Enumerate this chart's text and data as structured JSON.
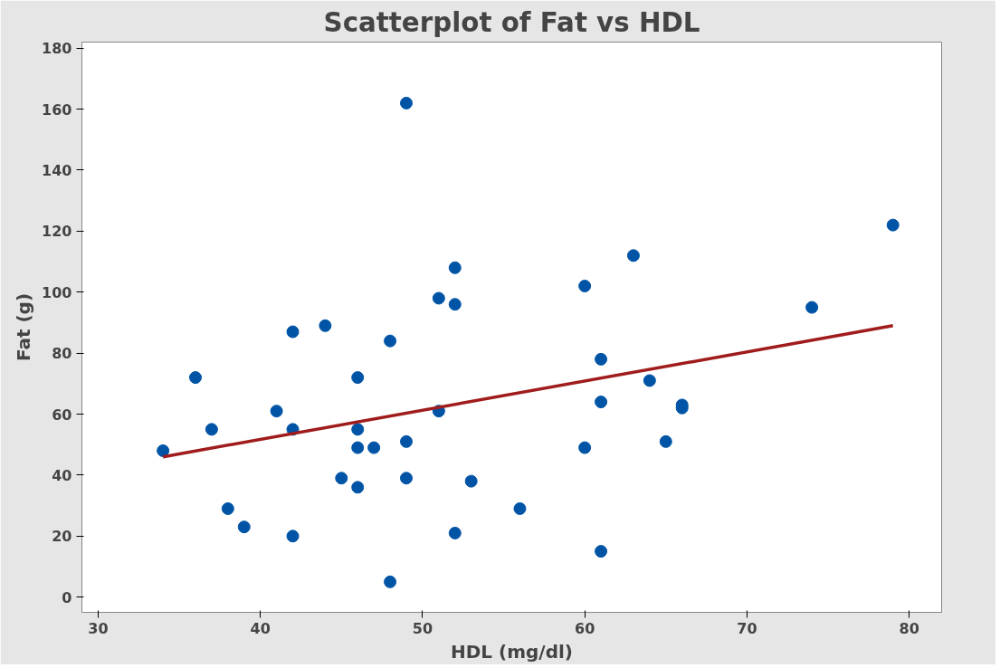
{
  "chart_data": {
    "type": "scatter",
    "title": "Scatterplot of Fat vs HDL",
    "xlabel": "HDL (mg/dl)",
    "ylabel": "Fat (g)",
    "xlim": [
      29,
      82
    ],
    "ylim": [
      -5,
      182
    ],
    "xticks": [
      30,
      40,
      50,
      60,
      70,
      80
    ],
    "yticks": [
      0,
      20,
      40,
      60,
      80,
      100,
      120,
      140,
      160,
      180
    ],
    "grid": false,
    "series": [
      {
        "color": "#0054a6",
        "marker": "circle",
        "x": [
          34,
          36,
          37,
          38,
          39,
          41,
          42,
          42,
          42,
          44,
          45,
          46,
          46,
          46,
          46,
          47,
          48,
          48,
          49,
          49,
          49,
          51,
          51,
          52,
          52,
          52,
          53,
          56,
          60,
          60,
          61,
          61,
          61,
          63,
          64,
          65,
          66,
          66,
          74,
          79
        ],
        "values": [
          48,
          72,
          55,
          29,
          23,
          61,
          87,
          55,
          20,
          89,
          39,
          72,
          55,
          49,
          36,
          49,
          84,
          5,
          162,
          51,
          39,
          98,
          61,
          108,
          96,
          21,
          38,
          29,
          102,
          49,
          78,
          64,
          15,
          112,
          71,
          51,
          63,
          62,
          95,
          122
        ]
      },
      {
        "type": "line",
        "color": "#a01c1c",
        "x": [
          34,
          79
        ],
        "values": [
          46,
          89
        ]
      }
    ]
  }
}
